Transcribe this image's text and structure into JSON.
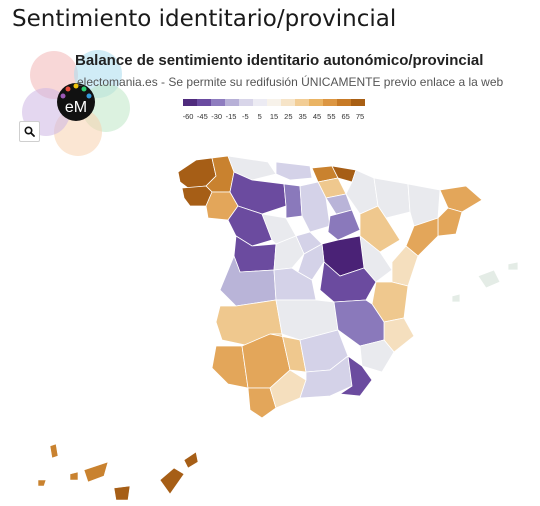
{
  "page": {
    "title": "Sentimiento identitario/provincial"
  },
  "map": {
    "heading": "Balance de sentimiento identitario autonómico/provincial",
    "subheading": "electomania.es - Se permite su redifusión ÚNICAMENTE previo enlace a la web",
    "logo_text": "eM",
    "search_icon": "magnifier-icon",
    "legend": {
      "ticks": [
        "-60",
        "-45",
        "-30",
        "-15",
        "-5",
        "5",
        "15",
        "25",
        "35",
        "45",
        "55",
        "65",
        "75"
      ],
      "colors": [
        "#4f2b7d",
        "#6a4ba0",
        "#8e7cbf",
        "#b7b0d7",
        "#d8d5e9",
        "#ecebf3",
        "#f7f2ea",
        "#f6e4c8",
        "#f2cd95",
        "#eab464",
        "#dc9642",
        "#c77a26",
        "#a85f14"
      ]
    },
    "colors": {
      "deep_purple": "#4a2276",
      "purple": "#6b4b9f",
      "mid_purple": "#8a79bb",
      "light_purple": "#b9b4d8",
      "pale_purple": "#d4d2e8",
      "neutral": "#e9eaee",
      "pale_green": "#e4ece6",
      "pale_orange": "#f5dfbe",
      "light_orange": "#efc88e",
      "orange": "#e3a65a",
      "dark_orange": "#c9822f",
      "brown": "#a65e16"
    }
  }
}
